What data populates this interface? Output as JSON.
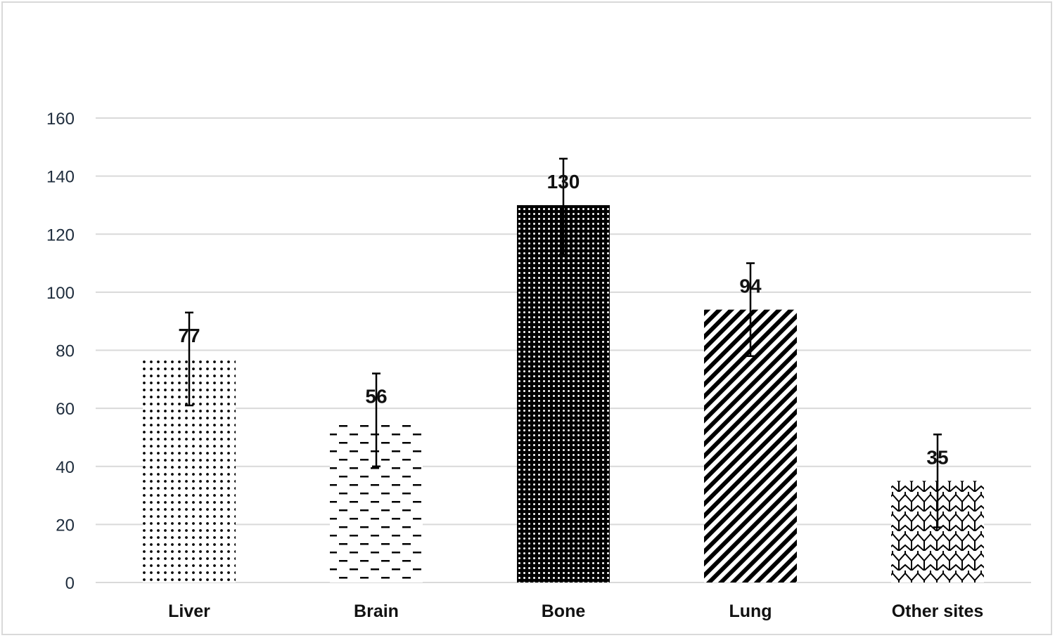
{
  "chart_data": {
    "type": "bar",
    "title": "",
    "xlabel": "",
    "ylabel": "",
    "categories": [
      "Liver",
      "Brain",
      "Bone",
      "Lung",
      "Other sites"
    ],
    "values": [
      77,
      56,
      130,
      94,
      35
    ],
    "data_labels": [
      "77",
      "56",
      "130",
      "94",
      "35"
    ],
    "error_bars": [
      [
        61,
        93
      ],
      [
        40,
        72
      ],
      [
        113,
        146
      ],
      [
        78,
        110
      ],
      [
        19,
        51
      ]
    ],
    "ylim": [
      0,
      160
    ],
    "yticks": [
      0,
      20,
      40,
      60,
      80,
      100,
      120,
      140,
      160
    ],
    "ytick_labels": [
      "0",
      "20",
      "40",
      "60",
      "80",
      "100",
      "120",
      "140",
      "160"
    ],
    "fill_patterns": [
      "sparse-dots",
      "dashes",
      "dense-dots",
      "diagonal-stripes",
      "zigzag"
    ],
    "grid": true,
    "legend": "none",
    "colors": {
      "gridline": "#d9d9d9",
      "mark": "#000000",
      "tick_text": "#1f2d3d"
    }
  }
}
